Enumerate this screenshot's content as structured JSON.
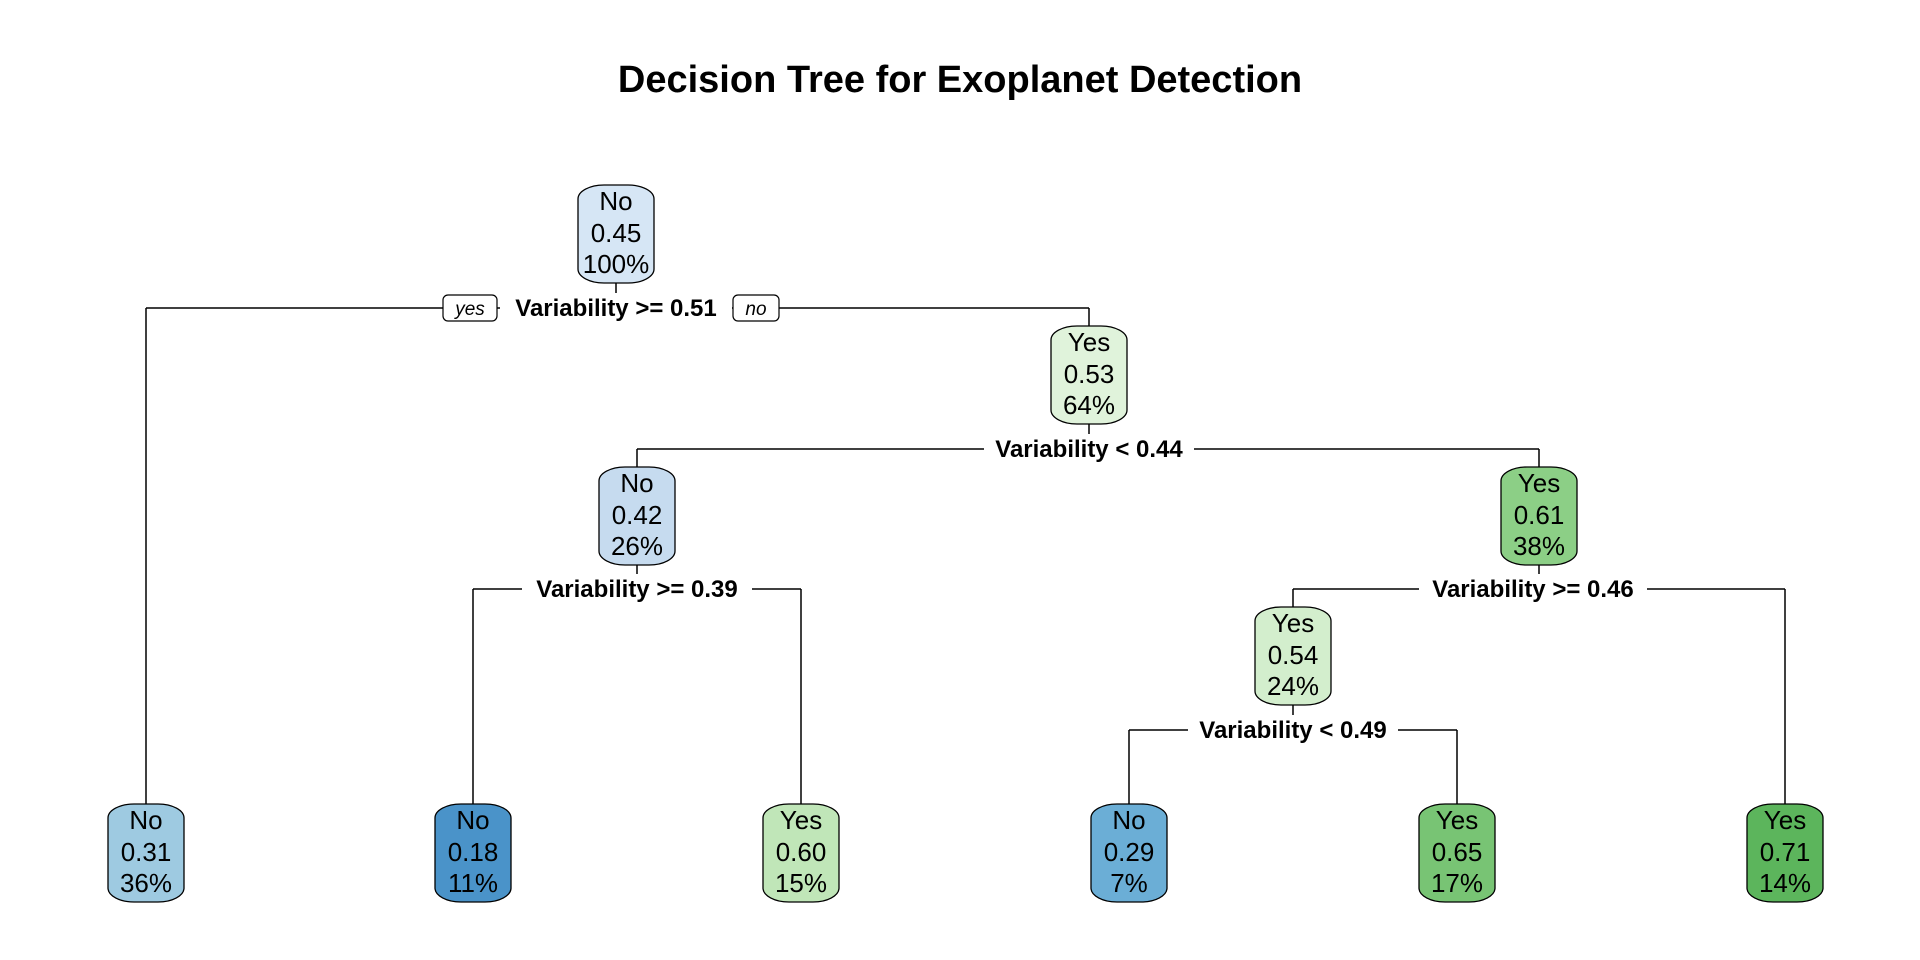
{
  "title": "Decision Tree for Exoplanet Detection",
  "colors": {
    "line": "#000000",
    "no_scale": [
      "#d6e6f5",
      "#c6dbef",
      "#9ecae1",
      "#6baed6",
      "#4a93c9"
    ],
    "yes_scale": [
      "#e5f5e0",
      "#d3eecd",
      "#c7e9c0",
      "#a1d99b",
      "#74c476",
      "#5cb55c"
    ]
  },
  "edge_labels": {
    "yes": "yes",
    "no": "no"
  },
  "nodes": [
    {
      "id": "n1",
      "class": "No",
      "prob": "0.45",
      "pct": "100%",
      "fill": "#d6e6f5"
    },
    {
      "id": "n3",
      "class": "Yes",
      "prob": "0.53",
      "pct": "64%",
      "fill": "#e0f3db"
    },
    {
      "id": "n6",
      "class": "No",
      "prob": "0.42",
      "pct": "26%",
      "fill": "#c6dbef"
    },
    {
      "id": "n7",
      "class": "Yes",
      "prob": "0.61",
      "pct": "38%",
      "fill": "#8ccf86"
    },
    {
      "id": "n14",
      "class": "Yes",
      "prob": "0.54",
      "pct": "24%",
      "fill": "#d3eecd"
    },
    {
      "id": "L1",
      "class": "No",
      "prob": "0.31",
      "pct": "36%",
      "fill": "#9ecae1"
    },
    {
      "id": "L2",
      "class": "No",
      "prob": "0.18",
      "pct": "11%",
      "fill": "#4a93c9"
    },
    {
      "id": "L3",
      "class": "Yes",
      "prob": "0.60",
      "pct": "15%",
      "fill": "#c0e6b8"
    },
    {
      "id": "L4",
      "class": "No",
      "prob": "0.29",
      "pct": "7%",
      "fill": "#6baed6"
    },
    {
      "id": "L5",
      "class": "Yes",
      "prob": "0.65",
      "pct": "17%",
      "fill": "#78c474"
    },
    {
      "id": "L6",
      "class": "Yes",
      "prob": "0.71",
      "pct": "14%",
      "fill": "#5cb55c"
    }
  ],
  "splits": [
    {
      "id": "s1",
      "label": "Variability >= 0.51",
      "parent": "n1",
      "left": "L1",
      "right": "n3",
      "show_yes_no": true
    },
    {
      "id": "s3",
      "label": "Variability < 0.44",
      "parent": "n3",
      "left": "n6",
      "right": "n7",
      "show_yes_no": false
    },
    {
      "id": "s6",
      "label": "Variability >= 0.39",
      "parent": "n6",
      "left": "L2",
      "right": "L3",
      "show_yes_no": false
    },
    {
      "id": "s7",
      "label": "Variability >= 0.46",
      "parent": "n7",
      "left": "n14",
      "right": "L6",
      "show_yes_no": false
    },
    {
      "id": "s14",
      "label": "Variability < 0.49",
      "parent": "n14",
      "left": "L4",
      "right": "L5",
      "show_yes_no": false
    }
  ]
}
